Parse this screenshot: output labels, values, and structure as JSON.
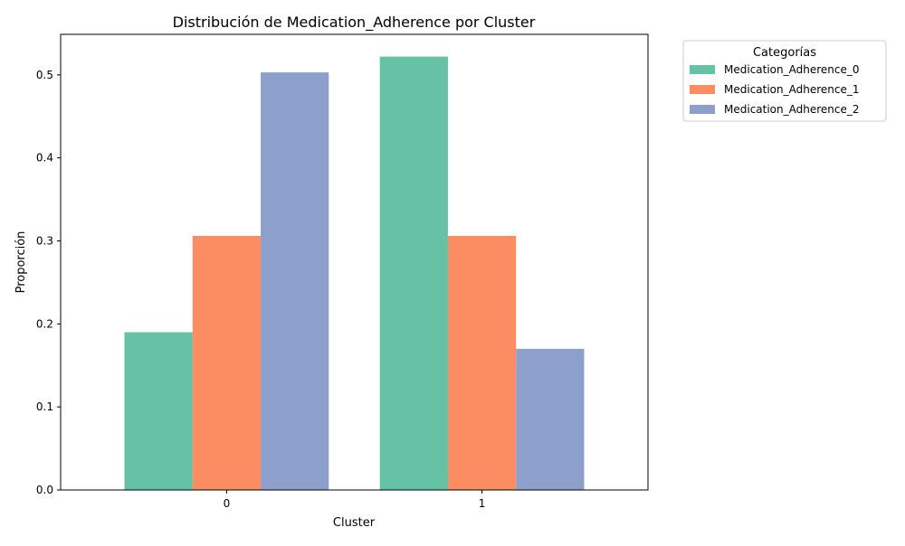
{
  "chart_data": {
    "type": "bar",
    "title": "Distribución de Medication_Adherence por Cluster",
    "xlabel": "Cluster",
    "ylabel": "Proporción",
    "categories": [
      "0",
      "1"
    ],
    "series": [
      {
        "name": "Medication_Adherence_0",
        "color": "#66c2a5",
        "values": [
          0.19,
          0.522
        ]
      },
      {
        "name": "Medication_Adherence_1",
        "color": "#fc8d62",
        "values": [
          0.306,
          0.306
        ]
      },
      {
        "name": "Medication_Adherence_2",
        "color": "#8da0cb",
        "values": [
          0.503,
          0.17
        ]
      }
    ],
    "ylim": [
      0,
      0.5488
    ],
    "yticks": [
      "0.0",
      "0.1",
      "0.2",
      "0.3",
      "0.4",
      "0.5"
    ],
    "ytick_values": [
      0,
      0.1,
      0.2,
      0.3,
      0.4,
      0.5
    ],
    "grid": false,
    "legend_title": "Categorías",
    "legend_position": "outside-top-right"
  }
}
